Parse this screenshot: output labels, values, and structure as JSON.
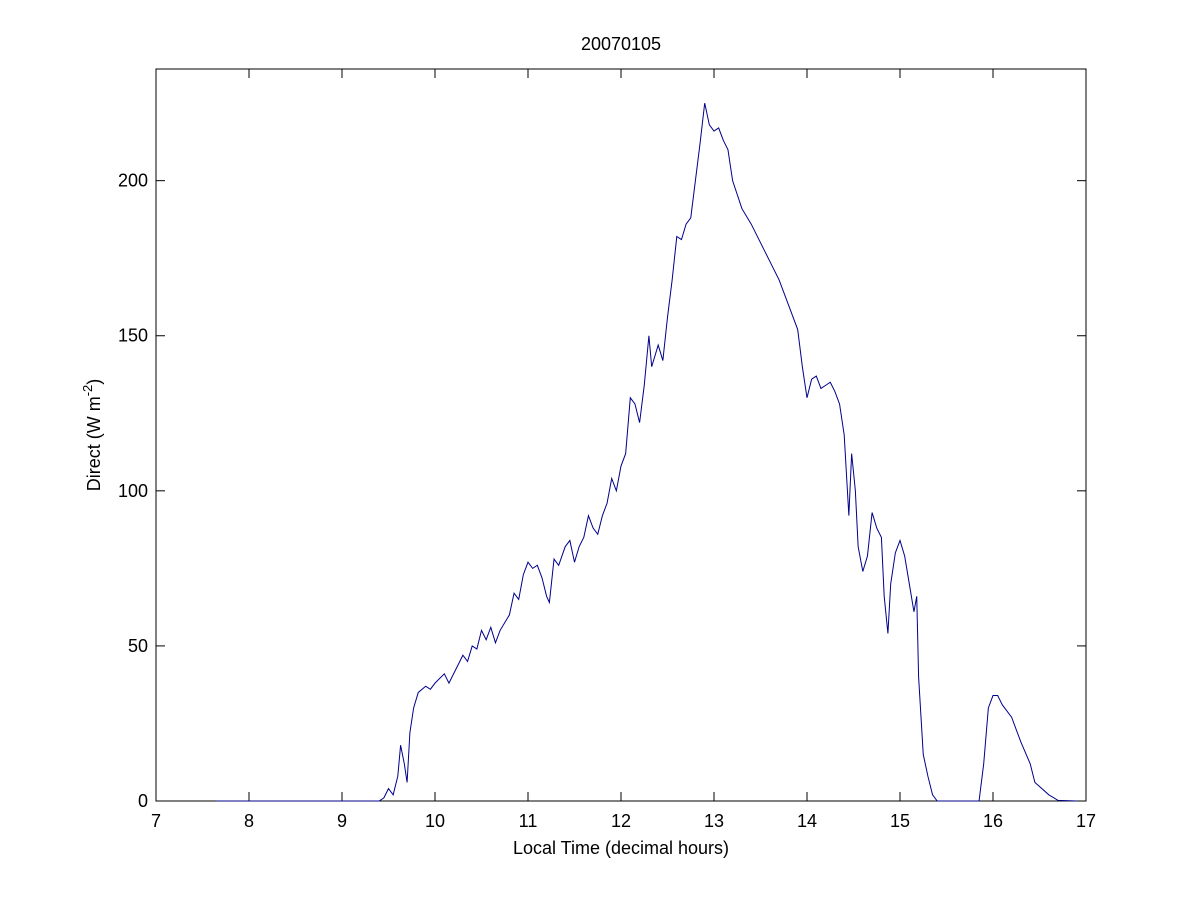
{
  "chart_data": {
    "type": "line",
    "title": "20070105",
    "xlabel": "Local Time (decimal hours)",
    "ylabel": {
      "text": "Direct (W m",
      "superscript": "-2",
      "suffix": ")"
    },
    "xlim": [
      7,
      17
    ],
    "xticks": [
      7,
      8,
      9,
      10,
      11,
      12,
      13,
      14,
      15,
      16,
      17
    ],
    "ylim": [
      0,
      236
    ],
    "yticks": [
      0,
      50,
      100,
      150,
      200
    ],
    "grid": false,
    "series": [
      {
        "name": "Direct",
        "color": "#00008b",
        "x": [
          7.65,
          9.4,
          9.45,
          9.5,
          9.55,
          9.6,
          9.63,
          9.67,
          9.7,
          9.73,
          9.77,
          9.82,
          9.9,
          9.95,
          10.0,
          10.1,
          10.15,
          10.25,
          10.3,
          10.35,
          10.4,
          10.45,
          10.5,
          10.55,
          10.6,
          10.65,
          10.7,
          10.8,
          10.85,
          10.9,
          10.95,
          11.0,
          11.05,
          11.1,
          11.15,
          11.2,
          11.23,
          11.28,
          11.33,
          11.4,
          11.45,
          11.5,
          11.55,
          11.6,
          11.65,
          11.7,
          11.75,
          11.8,
          11.85,
          11.9,
          11.95,
          12.0,
          12.05,
          12.1,
          12.15,
          12.2,
          12.25,
          12.3,
          12.33,
          12.4,
          12.45,
          12.5,
          12.55,
          12.6,
          12.65,
          12.7,
          12.75,
          12.8,
          12.85,
          12.9,
          12.95,
          13.0,
          13.05,
          13.1,
          13.15,
          13.2,
          13.3,
          13.4,
          13.5,
          13.6,
          13.7,
          13.8,
          13.9,
          13.95,
          14.0,
          14.05,
          14.1,
          14.15,
          14.2,
          14.25,
          14.3,
          14.35,
          14.4,
          14.45,
          14.48,
          14.52,
          14.55,
          14.6,
          14.65,
          14.7,
          14.75,
          14.8,
          14.83,
          14.87,
          14.9,
          14.95,
          15.0,
          15.05,
          15.1,
          15.15,
          15.18,
          15.2,
          15.25,
          15.3,
          15.35,
          15.4,
          15.85,
          15.9,
          15.95,
          16.0,
          16.05,
          16.1,
          16.2,
          16.3,
          16.4,
          16.45,
          16.6,
          16.7,
          16.9
        ],
        "values": [
          0,
          0,
          1,
          4,
          2,
          8,
          18,
          12,
          6,
          22,
          30,
          35,
          37,
          36,
          38,
          41,
          38,
          44,
          47,
          45,
          50,
          49,
          55,
          52,
          56,
          51,
          55,
          60,
          67,
          65,
          73,
          77,
          75,
          76,
          72,
          66,
          64,
          78,
          76,
          82,
          84,
          77,
          82,
          85,
          92,
          88,
          86,
          92,
          96,
          104,
          100,
          108,
          112,
          130,
          128,
          122,
          134,
          150,
          140,
          147,
          142,
          156,
          168,
          182,
          181,
          186,
          188,
          200,
          212,
          225,
          218,
          216,
          217,
          213,
          210,
          200,
          191,
          186,
          180,
          174,
          168,
          160,
          152,
          140,
          130,
          136,
          137,
          133,
          134,
          135,
          132,
          128,
          118,
          92,
          112,
          100,
          82,
          74,
          79,
          93,
          88,
          85,
          66,
          54,
          70,
          80,
          84,
          79,
          70,
          61,
          66,
          40,
          15,
          8,
          2,
          0,
          0,
          12,
          30,
          34,
          34,
          31,
          27,
          19,
          12,
          6,
          2,
          0.2,
          0
        ]
      }
    ]
  }
}
